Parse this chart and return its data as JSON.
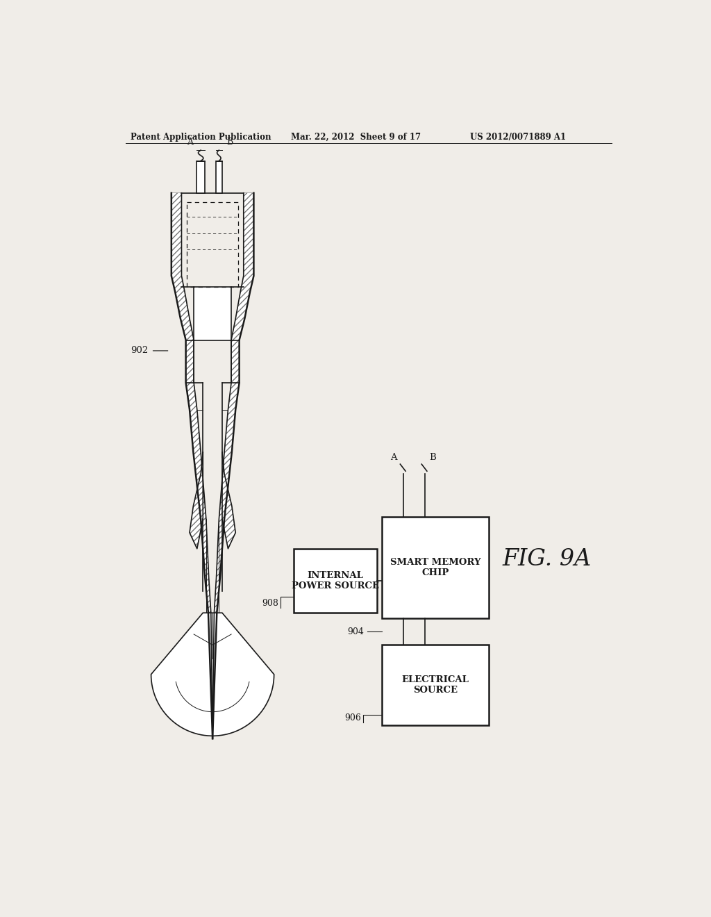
{
  "header_left": "Patent Application Publication",
  "header_mid": "Mar. 22, 2012  Sheet 9 of 17",
  "header_right": "US 2012/0071889 A1",
  "fig_label": "FIG. 9A",
  "label_902": "902",
  "label_904": "904",
  "label_906": "906",
  "label_908": "908",
  "label_A": "A",
  "label_B": "B",
  "box_power_source": "INTERNAL\nPOWER SOURCE",
  "box_smart_chip": "SMART MEMORY\nCHIP",
  "box_electrical": "ELECTRICAL\nSOURCE",
  "bg_color": "#f0ede8",
  "line_color": "#1a1a1a"
}
